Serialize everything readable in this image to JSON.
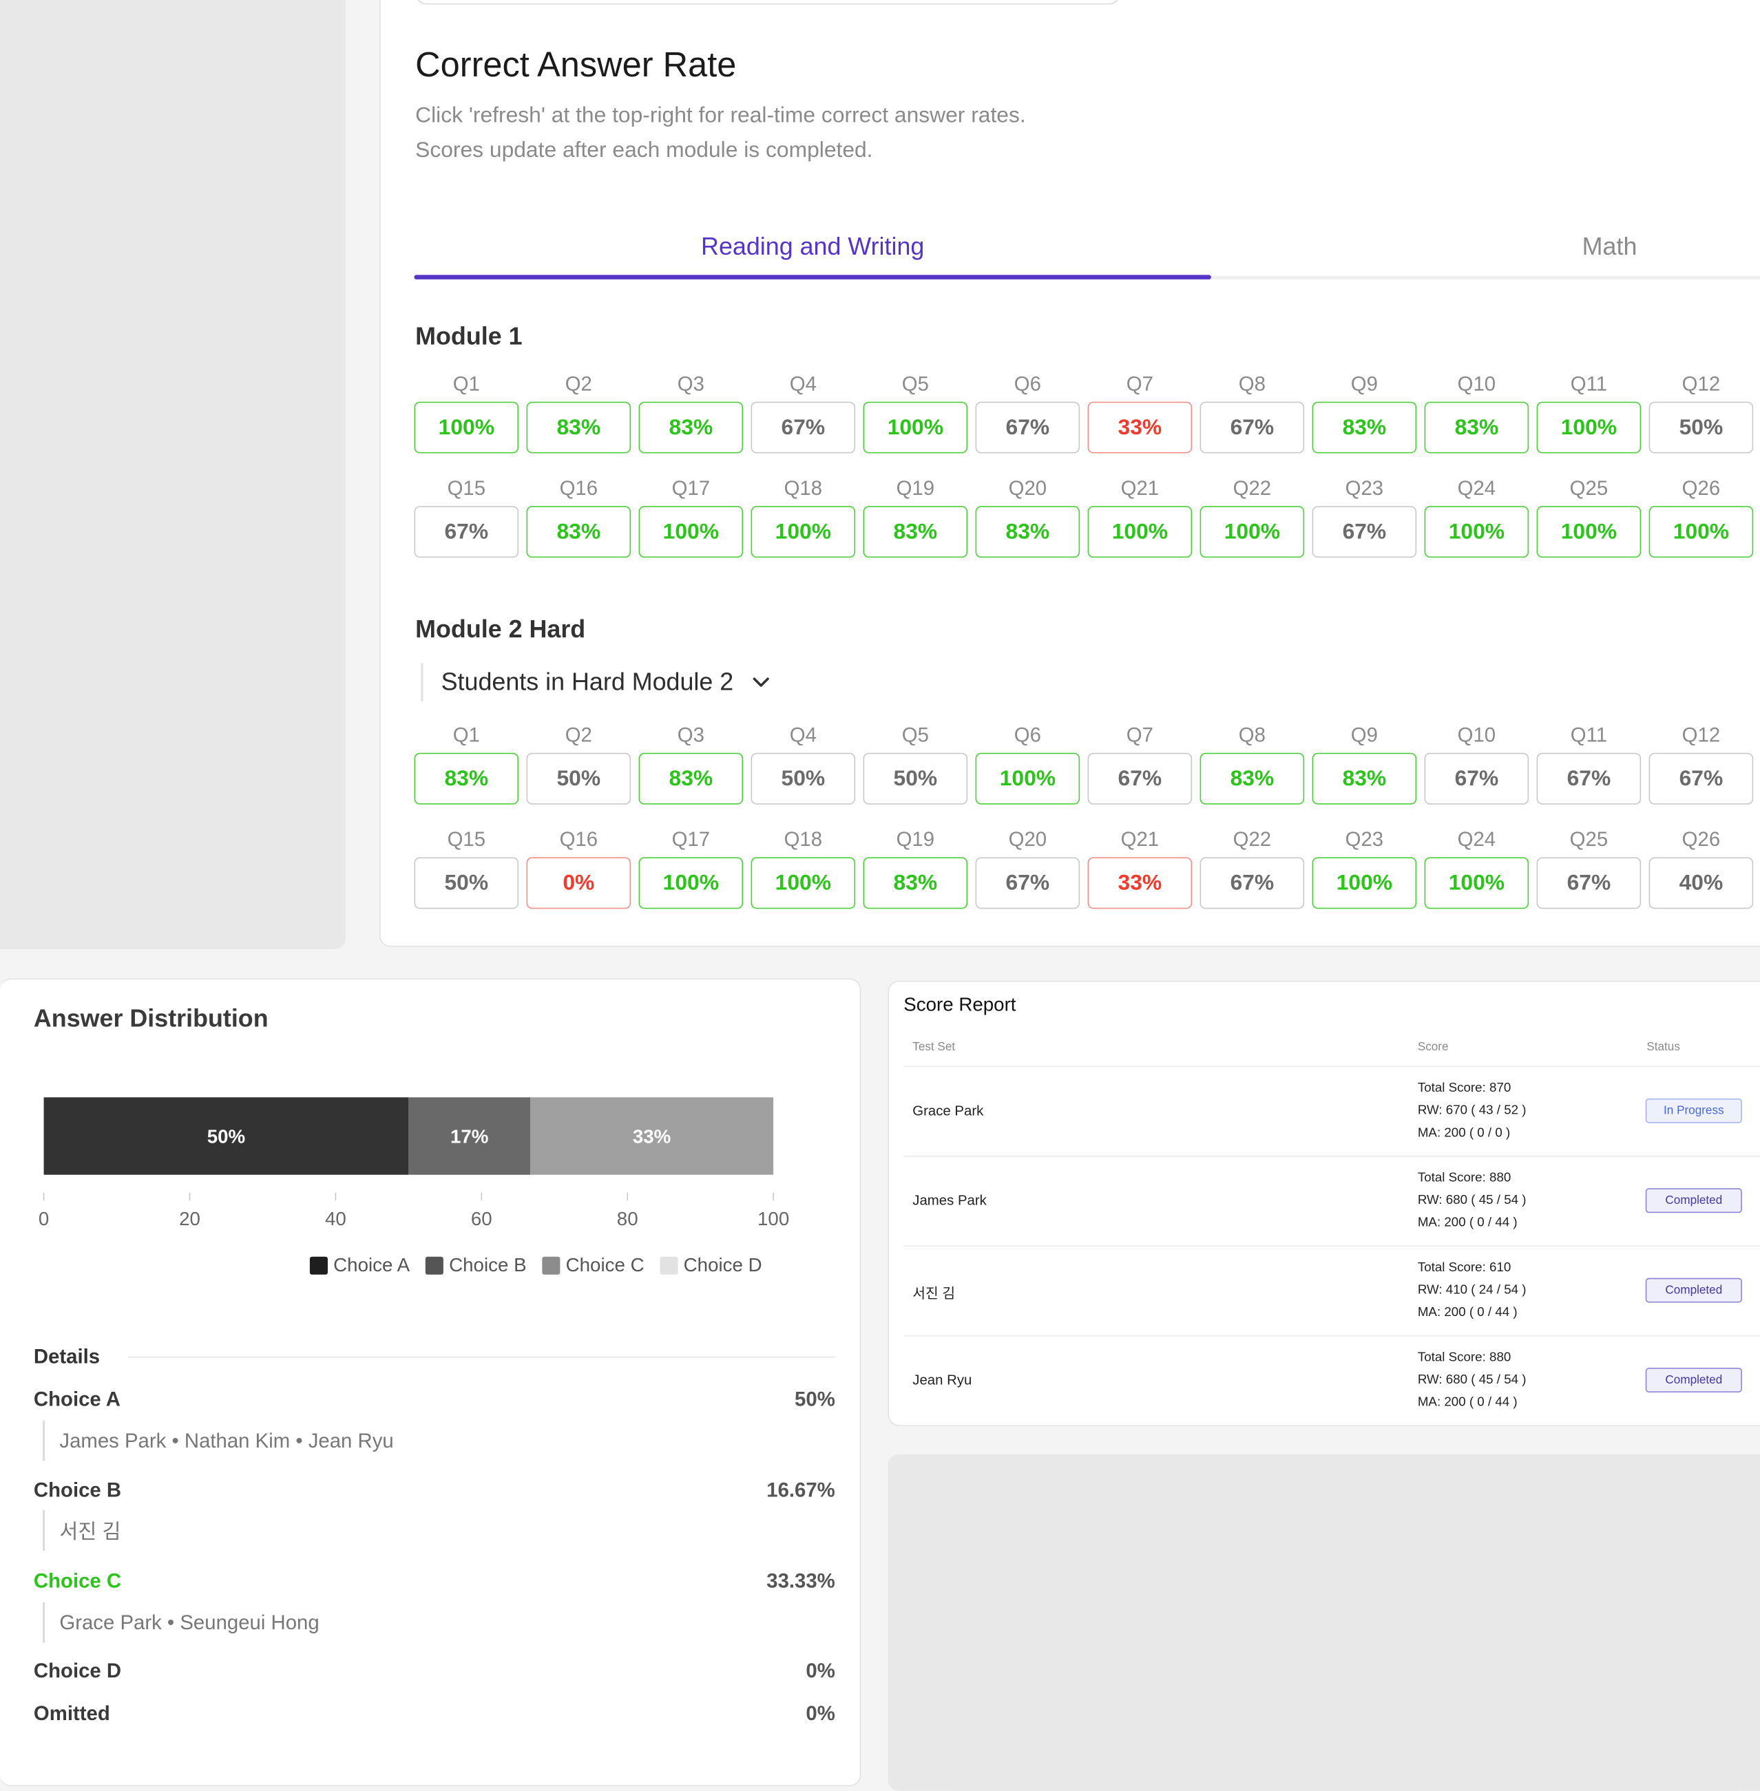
{
  "colors": {
    "accent": "#5535c6",
    "good": "#2cc41b",
    "bad": "#ef3b2d",
    "neutral": "#6b6b6b"
  },
  "correct_answer_rate": {
    "title": "Correct Answer Rate",
    "subtitle_line1": "Click 'refresh' at the top-right for real-time correct answer rates.",
    "subtitle_line2": "Scores update after each module is completed.",
    "tabs": [
      {
        "label": "Reading and Writing",
        "active": true
      },
      {
        "label": "Math",
        "active": false
      }
    ],
    "module1": {
      "title": "Module 1",
      "rows": [
        [
          {
            "q": "Q1",
            "pct": "100%",
            "status": "good"
          },
          {
            "q": "Q2",
            "pct": "83%",
            "status": "good"
          },
          {
            "q": "Q3",
            "pct": "83%",
            "status": "good"
          },
          {
            "q": "Q4",
            "pct": "67%",
            "status": "neutral"
          },
          {
            "q": "Q5",
            "pct": "100%",
            "status": "good"
          },
          {
            "q": "Q6",
            "pct": "67%",
            "status": "neutral"
          },
          {
            "q": "Q7",
            "pct": "33%",
            "status": "bad"
          },
          {
            "q": "Q8",
            "pct": "67%",
            "status": "neutral"
          },
          {
            "q": "Q9",
            "pct": "83%",
            "status": "good"
          },
          {
            "q": "Q10",
            "pct": "83%",
            "status": "good"
          },
          {
            "q": "Q11",
            "pct": "100%",
            "status": "good"
          },
          {
            "q": "Q12",
            "pct": "50%",
            "status": "neutral"
          }
        ],
        [
          {
            "q": "Q15",
            "pct": "67%",
            "status": "neutral"
          },
          {
            "q": "Q16",
            "pct": "83%",
            "status": "good"
          },
          {
            "q": "Q17",
            "pct": "100%",
            "status": "good"
          },
          {
            "q": "Q18",
            "pct": "100%",
            "status": "good"
          },
          {
            "q": "Q19",
            "pct": "83%",
            "status": "good"
          },
          {
            "q": "Q20",
            "pct": "83%",
            "status": "good"
          },
          {
            "q": "Q21",
            "pct": "100%",
            "status": "good"
          },
          {
            "q": "Q22",
            "pct": "100%",
            "status": "good"
          },
          {
            "q": "Q23",
            "pct": "67%",
            "status": "neutral"
          },
          {
            "q": "Q24",
            "pct": "100%",
            "status": "good"
          },
          {
            "q": "Q25",
            "pct": "100%",
            "status": "good"
          },
          {
            "q": "Q26",
            "pct": "100%",
            "status": "good"
          }
        ]
      ]
    },
    "module2": {
      "title": "Module 2 Hard",
      "student_select_label": "Students in Hard Module 2",
      "rows": [
        [
          {
            "q": "Q1",
            "pct": "83%",
            "status": "good"
          },
          {
            "q": "Q2",
            "pct": "50%",
            "status": "neutral"
          },
          {
            "q": "Q3",
            "pct": "83%",
            "status": "good"
          },
          {
            "q": "Q4",
            "pct": "50%",
            "status": "neutral"
          },
          {
            "q": "Q5",
            "pct": "50%",
            "status": "neutral"
          },
          {
            "q": "Q6",
            "pct": "100%",
            "status": "good"
          },
          {
            "q": "Q7",
            "pct": "67%",
            "status": "neutral"
          },
          {
            "q": "Q8",
            "pct": "83%",
            "status": "good"
          },
          {
            "q": "Q9",
            "pct": "83%",
            "status": "good"
          },
          {
            "q": "Q10",
            "pct": "67%",
            "status": "neutral"
          },
          {
            "q": "Q11",
            "pct": "67%",
            "status": "neutral"
          },
          {
            "q": "Q12",
            "pct": "67%",
            "status": "neutral"
          }
        ],
        [
          {
            "q": "Q15",
            "pct": "50%",
            "status": "neutral"
          },
          {
            "q": "Q16",
            "pct": "0%",
            "status": "bad"
          },
          {
            "q": "Q17",
            "pct": "100%",
            "status": "good"
          },
          {
            "q": "Q18",
            "pct": "100%",
            "status": "good"
          },
          {
            "q": "Q19",
            "pct": "83%",
            "status": "good"
          },
          {
            "q": "Q20",
            "pct": "67%",
            "status": "neutral"
          },
          {
            "q": "Q21",
            "pct": "33%",
            "status": "bad"
          },
          {
            "q": "Q22",
            "pct": "67%",
            "status": "neutral"
          },
          {
            "q": "Q23",
            "pct": "100%",
            "status": "good"
          },
          {
            "q": "Q24",
            "pct": "100%",
            "status": "good"
          },
          {
            "q": "Q25",
            "pct": "67%",
            "status": "neutral"
          },
          {
            "q": "Q26",
            "pct": "40%",
            "status": "neutral"
          }
        ]
      ]
    }
  },
  "answer_distribution": {
    "title": "Answer Distribution",
    "details_title": "Details",
    "details": [
      {
        "label": "Choice A",
        "pct": "50%",
        "names": "James Park • Nathan Kim • Jean Ryu",
        "correct": false
      },
      {
        "label": "Choice B",
        "pct": "16.67%",
        "names": "서진 김",
        "correct": false
      },
      {
        "label": "Choice C",
        "pct": "33.33%",
        "names": "Grace Park • Seungeui Hong",
        "correct": true
      },
      {
        "label": "Choice D",
        "pct": "0%",
        "names": "",
        "correct": false
      },
      {
        "label": "Omitted",
        "pct": "0%",
        "names": "",
        "correct": false
      }
    ]
  },
  "chart_data": {
    "type": "bar",
    "orientation": "horizontal-stacked",
    "title": "",
    "xlabel": "",
    "ylabel": "",
    "xlim": [
      0,
      100
    ],
    "xticks": [
      0,
      20,
      40,
      60,
      80,
      100
    ],
    "grid": false,
    "legend_position": "bottom-right",
    "series": [
      {
        "name": "Choice A",
        "value": 50,
        "label": "50%",
        "color": "#333333"
      },
      {
        "name": "Choice B",
        "value": 16.67,
        "label": "17%",
        "color": "#696969"
      },
      {
        "name": "Choice C",
        "value": 33.33,
        "label": "33%",
        "color": "#a0a0a0"
      },
      {
        "name": "Choice D",
        "value": 0,
        "label": "",
        "color": "#e2e2e2"
      }
    ]
  },
  "score_report": {
    "title": "Score Report",
    "columns": [
      "Test Set",
      "Score",
      "Status"
    ],
    "rows": [
      {
        "name": "Grace Park",
        "total": "Total Score: 870",
        "rw": "RW: 670 ( 43 / 52 )",
        "ma": "MA: 200 ( 0 / 0 )",
        "status": "In Progress",
        "status_kind": "progress"
      },
      {
        "name": "James Park",
        "total": "Total Score: 880",
        "rw": "RW: 680 ( 45 / 54 )",
        "ma": "MA: 200 ( 0 / 44 )",
        "status": "Completed",
        "status_kind": "completed"
      },
      {
        "name": "서진 김",
        "total": "Total Score: 610",
        "rw": "RW: 410 ( 24 / 54 )",
        "ma": "MA: 200 ( 0 / 44 )",
        "status": "Completed",
        "status_kind": "completed"
      },
      {
        "name": "Jean Ryu",
        "total": "Total Score: 880",
        "rw": "RW: 680 ( 45 / 54 )",
        "ma": "MA: 200 ( 0 / 44 )",
        "status": "Completed",
        "status_kind": "completed"
      }
    ]
  }
}
